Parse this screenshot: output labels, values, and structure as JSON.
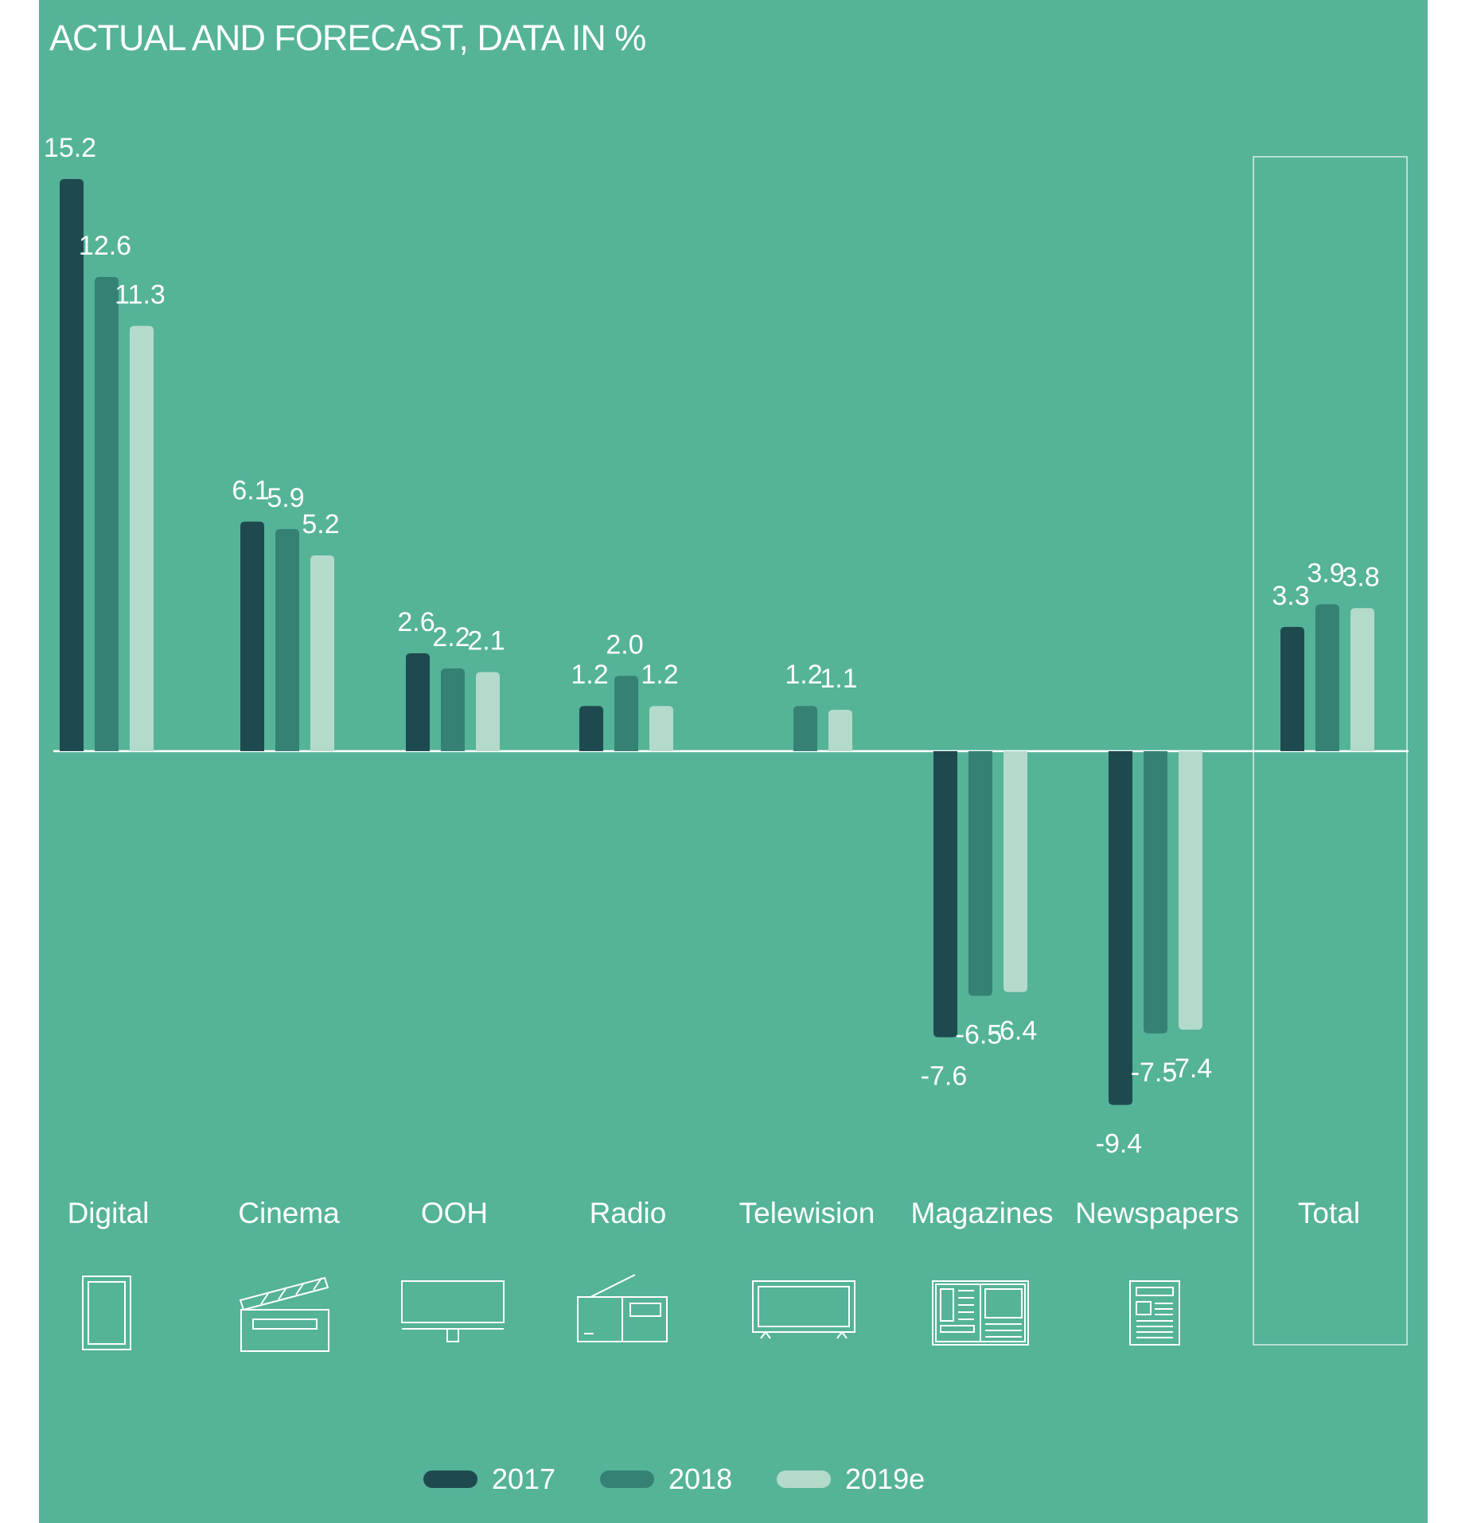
{
  "chart_data": {
    "type": "bar",
    "title": "ACTUAL AND FORECAST, DATA IN %",
    "categories": [
      "Digital",
      "Cinema",
      "OOH",
      "Radio",
      "Telewision",
      "Magazines",
      "Newspapers",
      "Total"
    ],
    "series": [
      {
        "name": "2017",
        "color": "#1e4a4f",
        "values": [
          15.2,
          6.1,
          2.6,
          1.2,
          null,
          -7.6,
          -9.4,
          3.3
        ]
      },
      {
        "name": "2018",
        "color": "#358275",
        "values": [
          12.6,
          5.9,
          2.2,
          2.0,
          1.2,
          -6.5,
          -7.5,
          3.9
        ]
      },
      {
        "name": "2019e",
        "color": "#b4dacb",
        "values": [
          11.3,
          5.2,
          2.1,
          1.2,
          1.1,
          -6.4,
          -7.4,
          3.8
        ]
      }
    ],
    "icons": [
      "tablet-icon",
      "clapperboard-icon",
      "billboard-icon",
      "radio-icon",
      "tv-icon",
      "magazine-icon",
      "newspaper-icon",
      ""
    ],
    "highlighted_category": "Total",
    "legend_position": "bottom",
    "grid": false
  }
}
